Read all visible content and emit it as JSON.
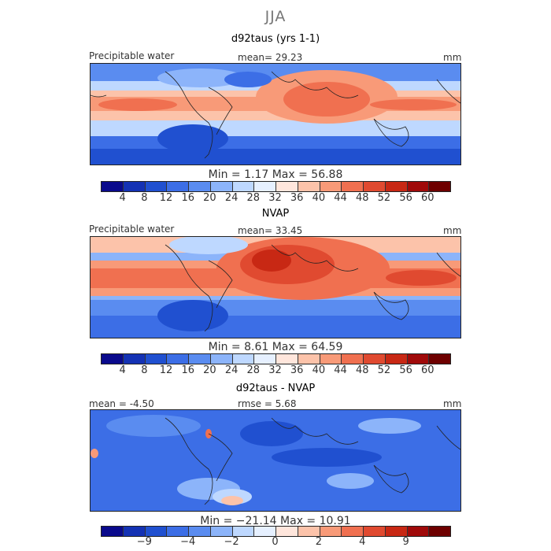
{
  "title": "JJA",
  "colors": [
    "#0a0a8c",
    "#1432b4",
    "#2050d0",
    "#3c6ee6",
    "#5a8cf0",
    "#8cb4fa",
    "#bed8ff",
    "#e6f0ff",
    "#ffe6dc",
    "#fcc3aa",
    "#f89a78",
    "#f07050",
    "#e04a30",
    "#c82814",
    "#a00a0a",
    "#6e0000"
  ],
  "panels": [
    {
      "title": "d92taus (yrs 1-1)",
      "label": "Precipitable water",
      "stat_text": "mean=  29.23",
      "units": "mm",
      "min_text": "Min =    1.17  Max =   56.88",
      "ticks": [
        "4",
        "8",
        "12",
        "16",
        "20",
        "24",
        "28",
        "32",
        "36",
        "40",
        "44",
        "48",
        "52",
        "56",
        "60"
      ]
    },
    {
      "title": "NVAP",
      "label": "Precipitable water",
      "stat_text": "mean=  33.45",
      "units": "mm",
      "min_text": "Min =    8.61  Max =   64.59",
      "ticks": [
        "4",
        "8",
        "12",
        "16",
        "20",
        "24",
        "28",
        "32",
        "36",
        "40",
        "44",
        "48",
        "52",
        "56",
        "60"
      ]
    },
    {
      "title": "d92taus - NVAP",
      "label": "mean =   -4.50",
      "stat_text": "rmse =    5.68",
      "units": "mm",
      "min_text": "Min = −21.14  Max =   10.91",
      "ticks": [
        "−9",
        "−4",
        "−2",
        "0",
        "2",
        "4",
        "9"
      ]
    }
  ]
}
